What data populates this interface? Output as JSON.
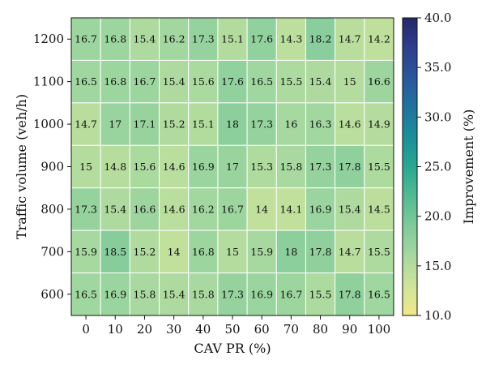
{
  "chart_data": {
    "type": "heatmap",
    "title": "",
    "xlabel": "CAV PR (%)",
    "ylabel": "Traffic volume (veh/h)",
    "colorbar_label": "Improvement (%)",
    "x_categories": [
      "0",
      "10",
      "20",
      "30",
      "40",
      "50",
      "60",
      "70",
      "80",
      "90",
      "100"
    ],
    "y_categories": [
      "1200",
      "1100",
      "1000",
      "900",
      "800",
      "700",
      "600"
    ],
    "values": [
      [
        16.7,
        16.8,
        15.4,
        16.2,
        17.3,
        15.1,
        17.6,
        14.3,
        18.2,
        14.7,
        14.2
      ],
      [
        16.5,
        16.8,
        16.7,
        15.4,
        15.6,
        17.6,
        16.5,
        15.5,
        15.4,
        15,
        16.6
      ],
      [
        14.7,
        17,
        17.1,
        15.2,
        15.1,
        18,
        17.3,
        16,
        16.3,
        14.6,
        14.9
      ],
      [
        15,
        14.8,
        15.6,
        14.6,
        16.9,
        17,
        15.3,
        15.8,
        17.3,
        17.8,
        15.5
      ],
      [
        17.3,
        15.4,
        16.6,
        14.6,
        16.2,
        16.7,
        14,
        14.1,
        16.9,
        15.4,
        14.5
      ],
      [
        15.9,
        18.5,
        15.2,
        14,
        16.8,
        15,
        15.9,
        18,
        17.8,
        14.7,
        15.5
      ],
      [
        16.5,
        16.9,
        15.8,
        15.4,
        15.8,
        17.3,
        16.9,
        16.7,
        15.5,
        17.8,
        16.5
      ]
    ],
    "colorbar_range": [
      10,
      40
    ],
    "colorbar_ticks": [
      "10.0",
      "15.0",
      "20.0",
      "25.0",
      "30.0",
      "35.0",
      "40.0"
    ],
    "colormap": [
      "#f1e889",
      "#cfe49a",
      "#a6d8a0",
      "#7fcb9a",
      "#52bb92",
      "#2aa793",
      "#1b8e9a",
      "#1f739f",
      "#2a579d",
      "#2e3e8d",
      "#22286a"
    ],
    "grid_line_color": "#ffffff",
    "legend": "right colorbar"
  }
}
